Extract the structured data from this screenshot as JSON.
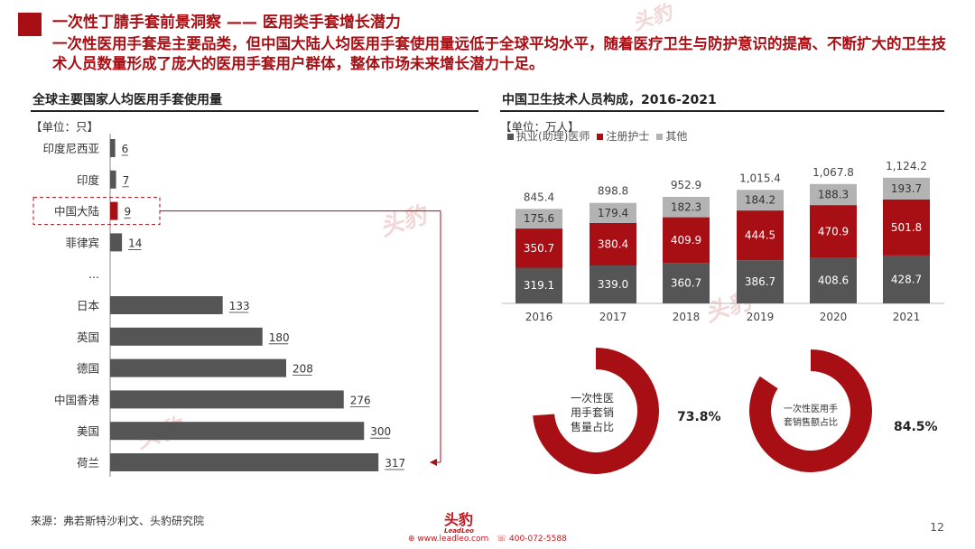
{
  "header": {
    "title": "一次性丁腈手套前景洞察 —— 医用类手套增长潜力",
    "subtitle": "一次性医用手套是主要品类，但中国大陆人均医用手套使用量远低于全球平均水平，随着医疗卫生与防护意识的提高、不断扩大的卫生技术人员数量形成了庞大的医用手套用户群体，整体市场未来增长潜力十足。"
  },
  "left_panel": {
    "title": "全球主要国家人均医用手套使用量",
    "unit": "【单位：只】"
  },
  "right_panel": {
    "title": "中国卫生技术人员构成，2016-2021",
    "unit": "【单位：万人】"
  },
  "chart_data": [
    {
      "type": "bar",
      "orientation": "horizontal",
      "title": "全球主要国家人均医用手套使用量",
      "unit": "只",
      "categories": [
        "印度尼西亚",
        "印度",
        "中国大陆",
        "菲律宾",
        "...",
        "日本",
        "英国",
        "德国",
        "中国香港",
        "美国",
        "荷兰"
      ],
      "values": [
        6,
        7,
        9,
        14,
        null,
        133,
        180,
        208,
        276,
        300,
        317
      ],
      "highlight": "中国大陆",
      "colors": {
        "bar": "#555555",
        "highlight": "#a80f14"
      }
    },
    {
      "type": "bar",
      "stacked": true,
      "title": "中国卫生技术人员构成，2016-2021",
      "unit": "万人",
      "categories": [
        "2016",
        "2017",
        "2018",
        "2019",
        "2020",
        "2021"
      ],
      "series": [
        {
          "name": "执业(助理)医师",
          "color": "#555555",
          "values": [
            319.1,
            339.0,
            360.7,
            386.7,
            408.6,
            428.7
          ]
        },
        {
          "name": "注册护士",
          "color": "#a80f14",
          "values": [
            350.7,
            380.4,
            409.9,
            444.5,
            470.9,
            501.8
          ]
        },
        {
          "name": "其他",
          "color": "#b3b3b3",
          "values": [
            175.6,
            179.4,
            182.3,
            184.2,
            188.3,
            193.7
          ]
        }
      ],
      "totals": [
        845.4,
        898.8,
        952.9,
        1015.4,
        1067.8,
        1124.2
      ],
      "total_labels": [
        "845.4",
        "898.8",
        "952.9",
        "1,015.4",
        "1,067.8",
        "1,124.2"
      ],
      "legend_position": "top-left"
    },
    {
      "type": "pie",
      "style": "donut",
      "title": "一次性医用手套销售量占比",
      "label_lines": [
        "一次性医",
        "用手套销",
        "售量占比"
      ],
      "value": 73.8,
      "value_label": "73.8%",
      "color": "#a80f14"
    },
    {
      "type": "pie",
      "style": "donut",
      "title": "一次性医用手套销售额占比",
      "label_lines": [
        "一次性医用手",
        "套销售额占比"
      ],
      "value": 84.5,
      "value_label": "84.5%",
      "color": "#a80f14"
    }
  ],
  "footer": {
    "source": "来源：弗若斯特沙利文、头豹研究院",
    "page_number": "12",
    "logo_text": "头豹",
    "logo_sub": "LeadLeo",
    "website": "www.leadleo.com",
    "phone": "400-072-5588"
  },
  "watermark": {
    "text": "头豹",
    "sub": "LeadLeo"
  },
  "colors": {
    "accent": "#a80f14",
    "dark_bar": "#555555",
    "grey_bar": "#b3b3b3"
  }
}
